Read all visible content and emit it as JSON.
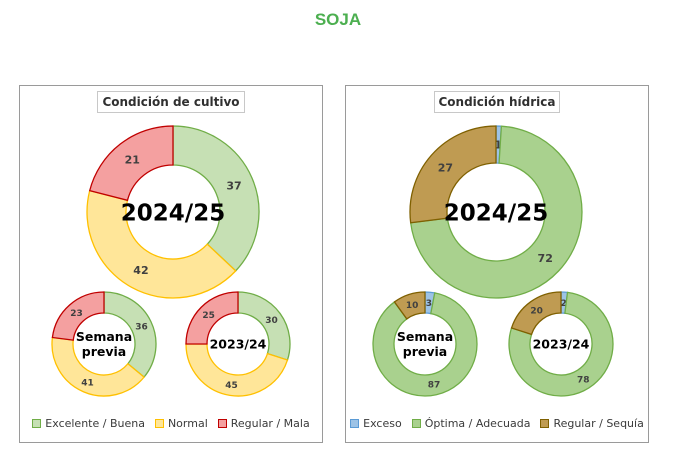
{
  "page": {
    "title": "SOJA",
    "title_color": "#4caf50"
  },
  "chart_data": [
    {
      "type": "pie",
      "variant": "donut",
      "panel_title": "Condición de cultivo",
      "legend": [
        {
          "label": "Excelente / Buena",
          "fill": "#c6e0b4",
          "stroke": "#70ad47"
        },
        {
          "label": "Normal",
          "fill": "#ffe699",
          "stroke": "#ffc000"
        },
        {
          "label": "Regular / Mala",
          "fill": "#f4a0a0",
          "stroke": "#c00000"
        }
      ],
      "rings": [
        {
          "label": "2024/25",
          "values": [
            37,
            42,
            21
          ]
        },
        {
          "label": "Semana previa",
          "label_lines": [
            "Semana",
            "previa"
          ],
          "values": [
            36,
            41,
            23
          ]
        },
        {
          "label": "2023/24",
          "values": [
            30,
            45,
            25
          ]
        }
      ]
    },
    {
      "type": "pie",
      "variant": "donut",
      "panel_title": "Condición hídrica",
      "legend": [
        {
          "label": "Exceso",
          "fill": "#9dc3e6",
          "stroke": "#5b9bd5"
        },
        {
          "label": "Óptima / Adecuada",
          "fill": "#a9d18e",
          "stroke": "#70ad47"
        },
        {
          "label": "Regular / Sequía",
          "fill": "#bf9b52",
          "stroke": "#7f6000"
        }
      ],
      "rings": [
        {
          "label": "2024/25",
          "values": [
            1,
            72,
            27
          ]
        },
        {
          "label": "Semana previa",
          "label_lines": [
            "Semana",
            "previa"
          ],
          "values": [
            3,
            87,
            10
          ]
        },
        {
          "label": "2023/24",
          "values": [
            2,
            78,
            20
          ]
        }
      ]
    }
  ]
}
